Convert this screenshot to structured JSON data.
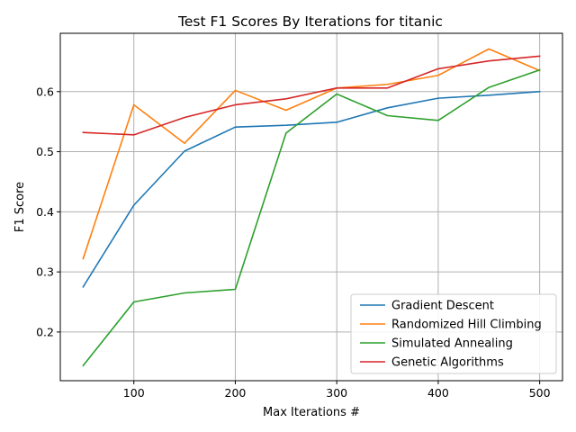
{
  "chart_data": {
    "type": "line",
    "title": "Test F1 Scores By Iterations for titanic",
    "xlabel": "Max Iterations #",
    "ylabel": "F1 Score",
    "xlim": [
      27.5,
      522.5
    ],
    "ylim": [
      0.119,
      0.697
    ],
    "grid": true,
    "legend_position": "lower-right",
    "x": [
      50,
      100,
      150,
      200,
      250,
      300,
      350,
      400,
      450,
      500
    ],
    "x_ticks": [
      100,
      200,
      300,
      400,
      500
    ],
    "y_ticks": [
      0.2,
      0.3,
      0.4,
      0.5,
      0.6
    ],
    "x_tick_labels": [
      "100",
      "200",
      "300",
      "400",
      "500"
    ],
    "y_tick_labels": [
      "0.2",
      "0.3",
      "0.4",
      "0.5",
      "0.6"
    ],
    "series": [
      {
        "name": "Gradient Descent",
        "color": "#1f77b4",
        "values": [
          0.275,
          0.411,
          0.501,
          0.541,
          0.544,
          0.549,
          0.573,
          0.589,
          0.594,
          0.6
        ]
      },
      {
        "name": "Randomized Hill Climbing",
        "color": "#ff7f0e",
        "values": [
          0.322,
          0.578,
          0.514,
          0.602,
          0.569,
          0.606,
          0.612,
          0.627,
          0.671,
          0.635
        ]
      },
      {
        "name": "Simulated Annealing",
        "color": "#2ca02c",
        "values": [
          0.144,
          0.25,
          0.265,
          0.271,
          0.531,
          0.596,
          0.56,
          0.552,
          0.607,
          0.636
        ]
      },
      {
        "name": "Genetic Algorithms",
        "color": "#d62728",
        "values": [
          0.532,
          0.528,
          0.557,
          0.578,
          0.588,
          0.606,
          0.606,
          0.638,
          0.651,
          0.659
        ]
      }
    ]
  }
}
